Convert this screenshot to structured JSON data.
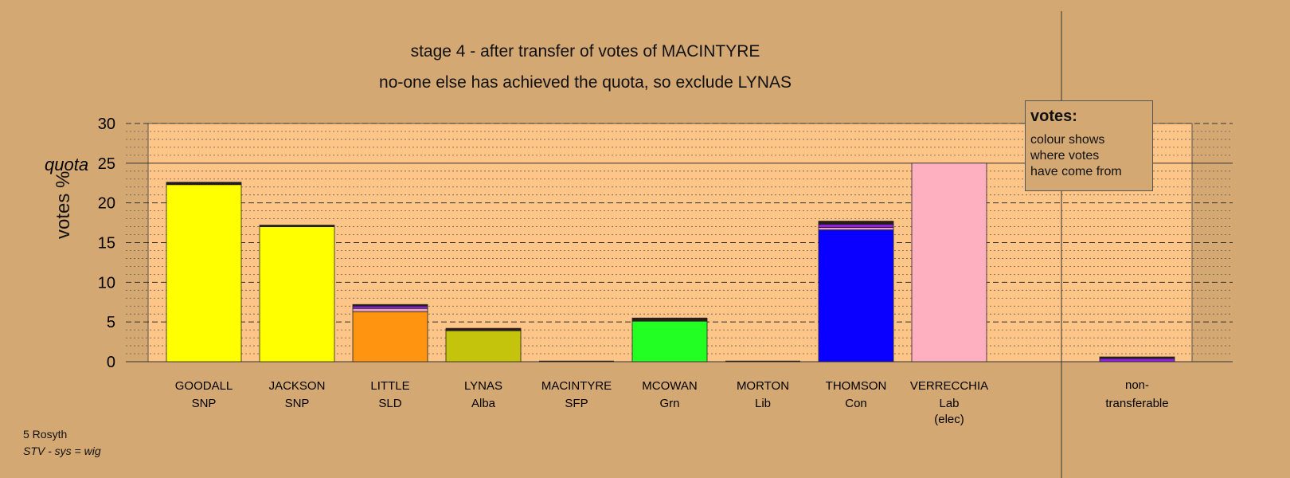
{
  "title_line1": "stage 4 - after transfer of votes of MACINTYRE",
  "title_line2": "no-one else has achieved the quota, so exclude LYNAS",
  "footer": {
    "ward": "5 Rosyth",
    "system": "STV - sys = wig"
  },
  "legend": {
    "title": "votes:",
    "body_lines": [
      "colour shows",
      "where votes",
      "have come from"
    ]
  },
  "chart_data": {
    "type": "bar",
    "stacked": true,
    "ylabel": "votes %",
    "ylim": [
      0,
      30
    ],
    "yticks": [
      0,
      5,
      10,
      15,
      20,
      25,
      30
    ],
    "quota": {
      "label": "quota",
      "value": 25
    },
    "grid": true,
    "legend_position": "top-right",
    "colors": {
      "plot_background": "#fdc688",
      "page_background": "#d4a873",
      "SNP": "#ffff00",
      "SLD": "#ff9410",
      "Alba": "#c4c40c",
      "Grn": "#22ff22",
      "Con": "#0a00ff",
      "Lab": "#ffb0c0",
      "transfer_dark": "#2a1a1a",
      "transfer_purple": "#9020e0",
      "transfer_pink": "#e8a0c0"
    },
    "candidates": [
      {
        "name": "GOODALL",
        "party": "SNP",
        "note": "",
        "segments": [
          {
            "value": 22.3,
            "color": "#ffff00"
          },
          {
            "value": 0.3,
            "color": "#2a1a1a"
          }
        ]
      },
      {
        "name": "JACKSON",
        "party": "SNP",
        "note": "",
        "segments": [
          {
            "value": 17.0,
            "color": "#ffff00"
          },
          {
            "value": 0.2,
            "color": "#2a1a1a"
          }
        ]
      },
      {
        "name": "LITTLE",
        "party": "SLD",
        "note": "",
        "segments": [
          {
            "value": 6.3,
            "color": "#ff9410"
          },
          {
            "value": 0.4,
            "color": "#e8a0c0"
          },
          {
            "value": 0.3,
            "color": "#9020e0"
          },
          {
            "value": 0.2,
            "color": "#2a1a1a"
          }
        ]
      },
      {
        "name": "LYNAS",
        "party": "Alba",
        "note": "",
        "segments": [
          {
            "value": 3.9,
            "color": "#c4c40c"
          },
          {
            "value": 0.3,
            "color": "#2a1a1a"
          }
        ]
      },
      {
        "name": "MACINTYRE",
        "party": "SFP",
        "note": "",
        "segments": []
      },
      {
        "name": "MCOWAN",
        "party": "Grn",
        "note": "",
        "segments": [
          {
            "value": 5.1,
            "color": "#22ff22"
          },
          {
            "value": 0.4,
            "color": "#2a1a1a"
          }
        ]
      },
      {
        "name": "MORTON",
        "party": "Lib",
        "note": "",
        "segments": []
      },
      {
        "name": "THOMSON",
        "party": "Con",
        "note": "",
        "segments": [
          {
            "value": 16.6,
            "color": "#0a00ff"
          },
          {
            "value": 0.3,
            "color": "#e8a0c0"
          },
          {
            "value": 0.4,
            "color": "#9020e0"
          },
          {
            "value": 0.4,
            "color": "#2a1a1a"
          }
        ]
      },
      {
        "name": "VERRECCHIA",
        "party": "Lab",
        "note": "(elec)",
        "segments": [
          {
            "value": 25.0,
            "color": "#ffb0c0"
          }
        ]
      }
    ],
    "nontransferable": {
      "label_line1": "non-",
      "label_line2": "transferable",
      "segments": [
        {
          "value": 0.4,
          "color": "#9020e0"
        },
        {
          "value": 0.2,
          "color": "#2a1a1a"
        }
      ]
    }
  }
}
